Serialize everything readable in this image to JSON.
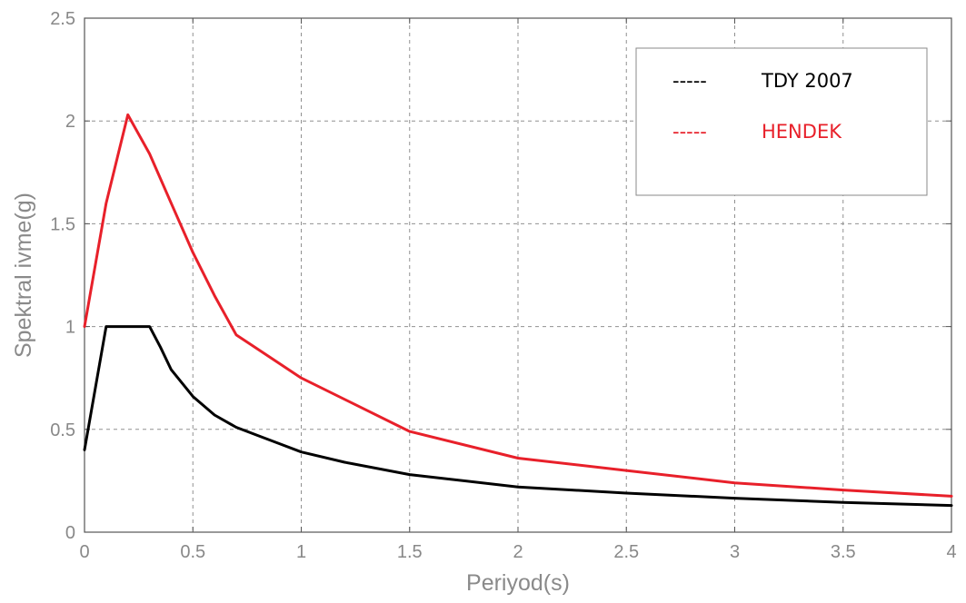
{
  "chart_data": {
    "type": "line",
    "title": "",
    "xlabel": "Periyod(s)",
    "ylabel": "Spektral ivme(g)",
    "xlim": [
      0,
      4
    ],
    "ylim": [
      0,
      2.5
    ],
    "xticks": [
      0,
      0.5,
      1,
      1.5,
      2,
      2.5,
      3,
      3.5,
      4
    ],
    "xtick_labels": [
      "0",
      "0.5",
      "1",
      "1.5",
      "2",
      "2.5",
      "3",
      "3.5",
      "4"
    ],
    "yticks": [
      0,
      0.5,
      1,
      1.5,
      2,
      2.5
    ],
    "ytick_labels": [
      "0",
      "0.5",
      "1",
      "1.5",
      "2",
      "2.5"
    ],
    "grid": true,
    "legend_position": "top-right",
    "series": [
      {
        "name": "TDY 2007",
        "legend_marker": "-----",
        "color": "#000000",
        "x": [
          0,
          0.05,
          0.1,
          0.15,
          0.2,
          0.25,
          0.3,
          0.35,
          0.4,
          0.5,
          0.6,
          0.7,
          0.8,
          0.9,
          1.0,
          1.2,
          1.5,
          2.0,
          2.5,
          3.0,
          3.5,
          4.0
        ],
        "y": [
          0.4,
          0.7,
          1.0,
          1.0,
          1.0,
          1.0,
          1.0,
          0.9,
          0.79,
          0.66,
          0.57,
          0.51,
          0.47,
          0.43,
          0.39,
          0.34,
          0.28,
          0.22,
          0.19,
          0.165,
          0.145,
          0.13
        ]
      },
      {
        "name": "HENDEK",
        "legend_marker": "-----",
        "color": "#e8202a",
        "x": [
          0,
          0.1,
          0.2,
          0.3,
          0.4,
          0.5,
          0.6,
          0.7,
          1.0,
          1.5,
          2.0,
          2.5,
          3.0,
          3.5,
          4.0
        ],
        "y": [
          1.0,
          1.6,
          2.03,
          1.84,
          1.6,
          1.36,
          1.15,
          0.96,
          0.75,
          0.49,
          0.36,
          0.3,
          0.24,
          0.205,
          0.175
        ]
      }
    ]
  }
}
